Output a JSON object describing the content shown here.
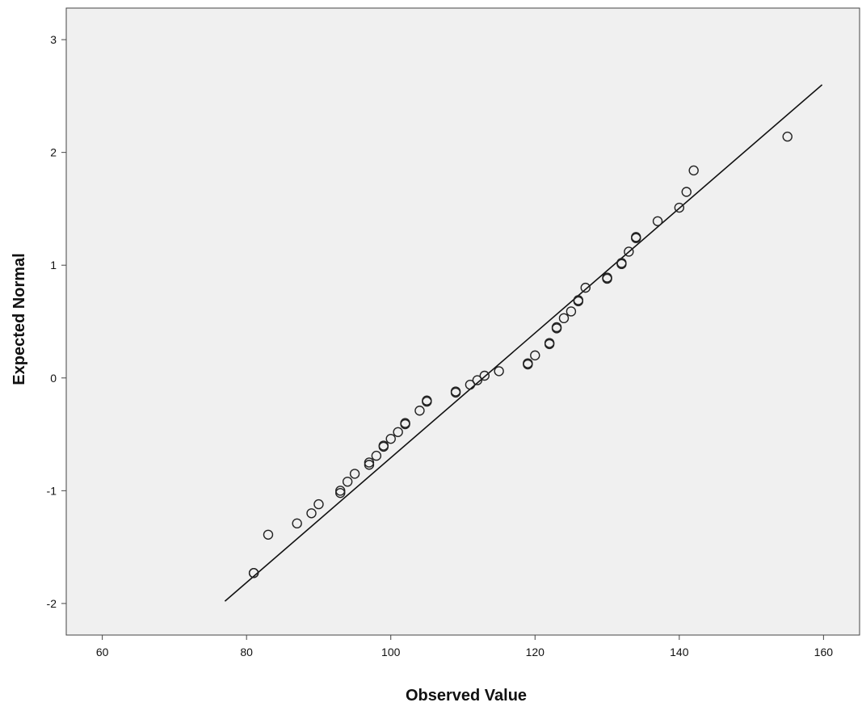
{
  "chart_data": {
    "type": "scatter",
    "xlabel": "Observed Value",
    "ylabel": "Expected Normal",
    "xlim": [
      55,
      165
    ],
    "ylim": [
      -2.28,
      3.28
    ],
    "x_ticks": [
      60,
      80,
      100,
      120,
      140,
      160
    ],
    "y_ticks": [
      -2,
      -1,
      0,
      1,
      2,
      3
    ],
    "grid": false,
    "reference_line": {
      "x": [
        77,
        159.8
      ],
      "y": [
        -1.98,
        2.6
      ]
    },
    "points": [
      {
        "x": 81,
        "y": -1.73
      },
      {
        "x": 81,
        "y": -1.73
      },
      {
        "x": 83,
        "y": -1.39
      },
      {
        "x": 87,
        "y": -1.29
      },
      {
        "x": 89,
        "y": -1.2
      },
      {
        "x": 90,
        "y": -1.12
      },
      {
        "x": 93,
        "y": -1.02
      },
      {
        "x": 93,
        "y": -1.0
      },
      {
        "x": 94,
        "y": -0.92
      },
      {
        "x": 95,
        "y": -0.85
      },
      {
        "x": 97,
        "y": -0.77
      },
      {
        "x": 97,
        "y": -0.75
      },
      {
        "x": 98,
        "y": -0.69
      },
      {
        "x": 99,
        "y": -0.61
      },
      {
        "x": 99,
        "y": -0.6
      },
      {
        "x": 100,
        "y": -0.54
      },
      {
        "x": 101,
        "y": -0.48
      },
      {
        "x": 102,
        "y": -0.41
      },
      {
        "x": 102,
        "y": -0.4
      },
      {
        "x": 104,
        "y": -0.29
      },
      {
        "x": 105,
        "y": -0.21
      },
      {
        "x": 105,
        "y": -0.2
      },
      {
        "x": 109,
        "y": -0.13
      },
      {
        "x": 109,
        "y": -0.12
      },
      {
        "x": 111,
        "y": -0.06
      },
      {
        "x": 112,
        "y": -0.02
      },
      {
        "x": 113,
        "y": 0.02
      },
      {
        "x": 115,
        "y": 0.06
      },
      {
        "x": 119,
        "y": 0.12
      },
      {
        "x": 119,
        "y": 0.13
      },
      {
        "x": 120,
        "y": 0.2
      },
      {
        "x": 122,
        "y": 0.3
      },
      {
        "x": 122,
        "y": 0.31
      },
      {
        "x": 123,
        "y": 0.44
      },
      {
        "x": 123,
        "y": 0.45
      },
      {
        "x": 124,
        "y": 0.53
      },
      {
        "x": 125,
        "y": 0.59
      },
      {
        "x": 126,
        "y": 0.68
      },
      {
        "x": 126,
        "y": 0.69
      },
      {
        "x": 127,
        "y": 0.8
      },
      {
        "x": 130,
        "y": 0.88
      },
      {
        "x": 130,
        "y": 0.89
      },
      {
        "x": 132,
        "y": 1.01
      },
      {
        "x": 132,
        "y": 1.02
      },
      {
        "x": 133,
        "y": 1.12
      },
      {
        "x": 134,
        "y": 1.24
      },
      {
        "x": 134,
        "y": 1.25
      },
      {
        "x": 137,
        "y": 1.39
      },
      {
        "x": 140,
        "y": 1.51
      },
      {
        "x": 141,
        "y": 1.65
      },
      {
        "x": 142,
        "y": 1.84
      },
      {
        "x": 155,
        "y": 2.14
      }
    ],
    "colors": {
      "plot_background": "#f0f0f0",
      "marker": "#222222",
      "line": "#111111",
      "axis": "#444444"
    }
  }
}
